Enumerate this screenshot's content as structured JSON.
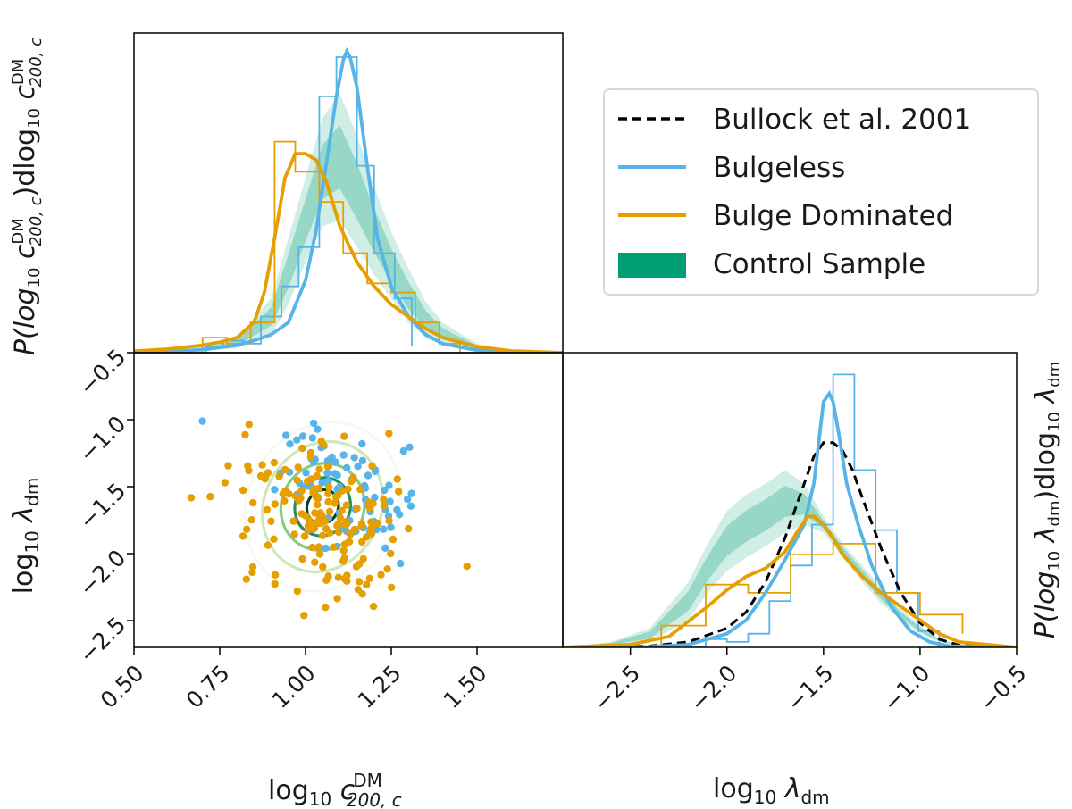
{
  "chart_data": [
    {
      "panel": "top-left",
      "type": "line",
      "description_axes": {
        "xlim": [
          0.5,
          1.75
        ],
        "ylim": [
          0,
          1
        ]
      },
      "ylabel_parts": {
        "pre": "P(log",
        "sub1": "10",
        "mid": " c",
        "sup": "DM",
        "sub2": "200, c",
        "post": ")dlog",
        "sub3": "10",
        "tail": " c",
        "sup2": "DM",
        "sub4": "200, c"
      },
      "series": [
        {
          "name": "Bulgeless",
          "color": "#56b4e9",
          "kde_x": [
            0.5,
            0.6,
            0.7,
            0.8,
            0.85,
            0.9,
            0.95,
            1.0,
            1.03,
            1.06,
            1.09,
            1.11,
            1.12,
            1.13,
            1.15,
            1.18,
            1.21,
            1.25,
            1.3,
            1.35,
            1.4,
            1.5,
            1.6,
            1.75
          ],
          "kde_y": [
            0,
            0.003,
            0.01,
            0.025,
            0.04,
            0.06,
            0.1,
            0.24,
            0.4,
            0.62,
            0.85,
            0.97,
            1.0,
            0.98,
            0.88,
            0.62,
            0.38,
            0.22,
            0.12,
            0.06,
            0.03,
            0.008,
            0.002,
            0
          ],
          "hist_edges": [
            0.71,
            0.76,
            0.82,
            0.87,
            0.93,
            0.98,
            1.04,
            1.09,
            1.15,
            1.2,
            1.26,
            1.31
          ],
          "hist_heights": [
            0.02,
            0.04,
            0.03,
            0.12,
            0.22,
            0.35,
            0.85,
            0.98,
            0.62,
            0.33,
            0.18,
            0.02
          ]
        },
        {
          "name": "Bulge Dominated",
          "color": "#e69f00",
          "kde_x": [
            0.5,
            0.6,
            0.7,
            0.75,
            0.8,
            0.85,
            0.88,
            0.91,
            0.94,
            0.97,
            1.0,
            1.03,
            1.06,
            1.1,
            1.15,
            1.2,
            1.25,
            1.3,
            1.35,
            1.4,
            1.5,
            1.6,
            1.75
          ],
          "kde_y": [
            0.005,
            0.012,
            0.025,
            0.035,
            0.05,
            0.1,
            0.2,
            0.38,
            0.58,
            0.66,
            0.66,
            0.64,
            0.57,
            0.42,
            0.3,
            0.22,
            0.16,
            0.12,
            0.08,
            0.05,
            0.02,
            0.006,
            0
          ],
          "hist_edges": [
            0.7,
            0.77,
            0.84,
            0.91,
            0.97,
            1.04,
            1.11,
            1.18,
            1.25,
            1.32,
            1.39,
            1.45
          ],
          "hist_heights": [
            0.05,
            0.03,
            0.1,
            0.7,
            0.6,
            0.5,
            0.33,
            0.23,
            0.2,
            0.1,
            0.03,
            0.0
          ]
        },
        {
          "name": "Control Sample",
          "color": "#009e73",
          "band_x": [
            0.5,
            0.7,
            0.8,
            0.9,
            0.95,
            1.0,
            1.05,
            1.1,
            1.15,
            1.2,
            1.25,
            1.3,
            1.35,
            1.4,
            1.5,
            1.6,
            1.75
          ],
          "band_lo": [
            0,
            0.005,
            0.015,
            0.06,
            0.16,
            0.3,
            0.42,
            0.44,
            0.35,
            0.26,
            0.18,
            0.1,
            0.05,
            0.025,
            0.006,
            0.001,
            0
          ],
          "band_hi": [
            0,
            0.02,
            0.05,
            0.18,
            0.38,
            0.58,
            0.78,
            0.86,
            0.72,
            0.55,
            0.4,
            0.28,
            0.17,
            0.1,
            0.03,
            0.008,
            0
          ]
        }
      ]
    },
    {
      "panel": "bottom-left",
      "type": "scatter",
      "xlim": [
        0.5,
        1.75
      ],
      "ylim": [
        -2.7,
        -0.5
      ],
      "xticks": [
        "0.50",
        "0.75",
        "1.00",
        "1.25",
        "1.50"
      ],
      "yticks": [
        "-0.5",
        "-1.0",
        "-1.5",
        "-2.0",
        "-2.5"
      ],
      "xlabel_parts": {
        "pre": "log",
        "sub": "10",
        "mid": " c",
        "sup": "DM",
        "sub2": "200, c"
      },
      "ylabel_parts": {
        "pre": "log",
        "sub": "10",
        "mid": " λ",
        "sub2": "dm"
      },
      "contours": {
        "center": [
          1.05,
          -1.65
        ],
        "levels": [
          {
            "rx": 0.22,
            "ry": 0.65,
            "color": "#f6f8ee",
            "opacity": 0.9
          },
          {
            "rx": 0.17,
            "ry": 0.5,
            "color": "#c8e6b4",
            "opacity": 0.9
          },
          {
            "rx": 0.12,
            "ry": 0.33,
            "color": "#86cc80",
            "opacity": 1
          },
          {
            "rx": 0.08,
            "ry": 0.22,
            "color": "#2e8b57",
            "opacity": 1
          },
          {
            "rx": 0.045,
            "ry": 0.13,
            "color": "#00441b",
            "opacity": 1
          }
        ]
      },
      "scatter_seed": 7,
      "scatter_counts": {
        "Bulgeless": 90,
        "Bulge Dominated": 170
      }
    },
    {
      "panel": "bottom-right",
      "type": "line",
      "xlim": [
        -2.85,
        -0.5
      ],
      "ylim": [
        0,
        1
      ],
      "xticks": [
        "-2.5",
        "-2.0",
        "-1.5",
        "-1.0",
        "-0.5"
      ],
      "xlabel_parts": {
        "pre": "log",
        "sub": "10",
        "mid": " λ",
        "sub2": "dm"
      },
      "ylabel_parts": {
        "pre": "P(log",
        "sub": "10",
        "mid": " λ",
        "sub2": "dm",
        "post": ")dlog",
        "sub3": "10",
        "tail": " λ",
        "sub4": "dm"
      },
      "series": [
        {
          "name": "Bullock et al. 2001",
          "color": "#000000",
          "dashed": true,
          "kde_x": [
            -2.85,
            -2.4,
            -2.2,
            -2.0,
            -1.9,
            -1.8,
            -1.7,
            -1.6,
            -1.55,
            -1.5,
            -1.45,
            -1.4,
            -1.35,
            -1.3,
            -1.2,
            -1.1,
            -1.0,
            -0.9,
            -0.8,
            -0.5
          ],
          "kde_y": [
            0,
            0.005,
            0.02,
            0.07,
            0.13,
            0.24,
            0.4,
            0.6,
            0.7,
            0.75,
            0.75,
            0.72,
            0.65,
            0.55,
            0.36,
            0.2,
            0.09,
            0.03,
            0.008,
            0
          ]
        },
        {
          "name": "Bulgeless",
          "color": "#56b4e9",
          "kde_x": [
            -2.85,
            -2.4,
            -2.2,
            -2.0,
            -1.9,
            -1.8,
            -1.7,
            -1.6,
            -1.55,
            -1.52,
            -1.5,
            -1.47,
            -1.45,
            -1.42,
            -1.38,
            -1.32,
            -1.25,
            -1.15,
            -1.05,
            -0.95,
            -0.85,
            -0.5
          ],
          "kde_y": [
            0,
            0.002,
            0.01,
            0.05,
            0.1,
            0.2,
            0.32,
            0.45,
            0.6,
            0.78,
            0.9,
            0.93,
            0.9,
            0.78,
            0.6,
            0.45,
            0.3,
            0.15,
            0.06,
            0.02,
            0.005,
            0
          ],
          "hist_edges": [
            -2.22,
            -2.11,
            -2.0,
            -1.89,
            -1.78,
            -1.67,
            -1.56,
            -1.45,
            -1.34,
            -1.23,
            -1.12,
            -1.01,
            -0.9
          ],
          "hist_heights": [
            0.0,
            0.03,
            0.02,
            0.05,
            0.17,
            0.3,
            0.45,
            1.0,
            0.65,
            0.43,
            0.2,
            0.06,
            0.0
          ]
        },
        {
          "name": "Bulge Dominated",
          "color": "#e69f00",
          "kde_x": [
            -2.85,
            -2.5,
            -2.3,
            -2.1,
            -2.0,
            -1.9,
            -1.8,
            -1.7,
            -1.63,
            -1.58,
            -1.55,
            -1.5,
            -1.45,
            -1.4,
            -1.3,
            -1.2,
            -1.1,
            -1.0,
            -0.9,
            -0.8,
            -0.5
          ],
          "kde_y": [
            0,
            0.01,
            0.04,
            0.15,
            0.21,
            0.26,
            0.29,
            0.35,
            0.43,
            0.48,
            0.48,
            0.45,
            0.4,
            0.34,
            0.26,
            0.2,
            0.15,
            0.1,
            0.05,
            0.02,
            0
          ],
          "hist_edges": [
            -2.34,
            -2.11,
            -1.89,
            -1.67,
            -1.45,
            -1.23,
            -1.0,
            -0.78
          ],
          "hist_heights": [
            0.08,
            0.23,
            0.2,
            0.34,
            0.38,
            0.2,
            0.12,
            0.05
          ]
        },
        {
          "name": "Control Sample",
          "color": "#009e73",
          "band_x": [
            -2.85,
            -2.6,
            -2.4,
            -2.2,
            -2.1,
            -2.0,
            -1.9,
            -1.8,
            -1.7,
            -1.6,
            -1.5,
            -1.4,
            -1.3,
            -1.2,
            -1.1,
            -1.0,
            -0.9,
            -0.8,
            -0.5
          ],
          "band_lo": [
            0,
            0.005,
            0.02,
            0.1,
            0.2,
            0.28,
            0.33,
            0.37,
            0.42,
            0.45,
            0.42,
            0.33,
            0.24,
            0.16,
            0.1,
            0.05,
            0.02,
            0.005,
            0
          ],
          "band_hi": [
            0,
            0.02,
            0.07,
            0.24,
            0.38,
            0.5,
            0.56,
            0.6,
            0.65,
            0.6,
            0.48,
            0.38,
            0.3,
            0.22,
            0.14,
            0.08,
            0.03,
            0.01,
            0
          ]
        }
      ]
    }
  ],
  "legend": {
    "placement": "top-right",
    "items": [
      {
        "label": "Bullock et al. 2001",
        "color": "#000000",
        "style": "dashed"
      },
      {
        "label": "Bulgeless",
        "color": "#56b4e9",
        "style": "line"
      },
      {
        "label": "Bulge Dominated",
        "color": "#e69f00",
        "style": "line"
      },
      {
        "label": "Control Sample",
        "color": "#009e73",
        "style": "patch"
      }
    ]
  }
}
